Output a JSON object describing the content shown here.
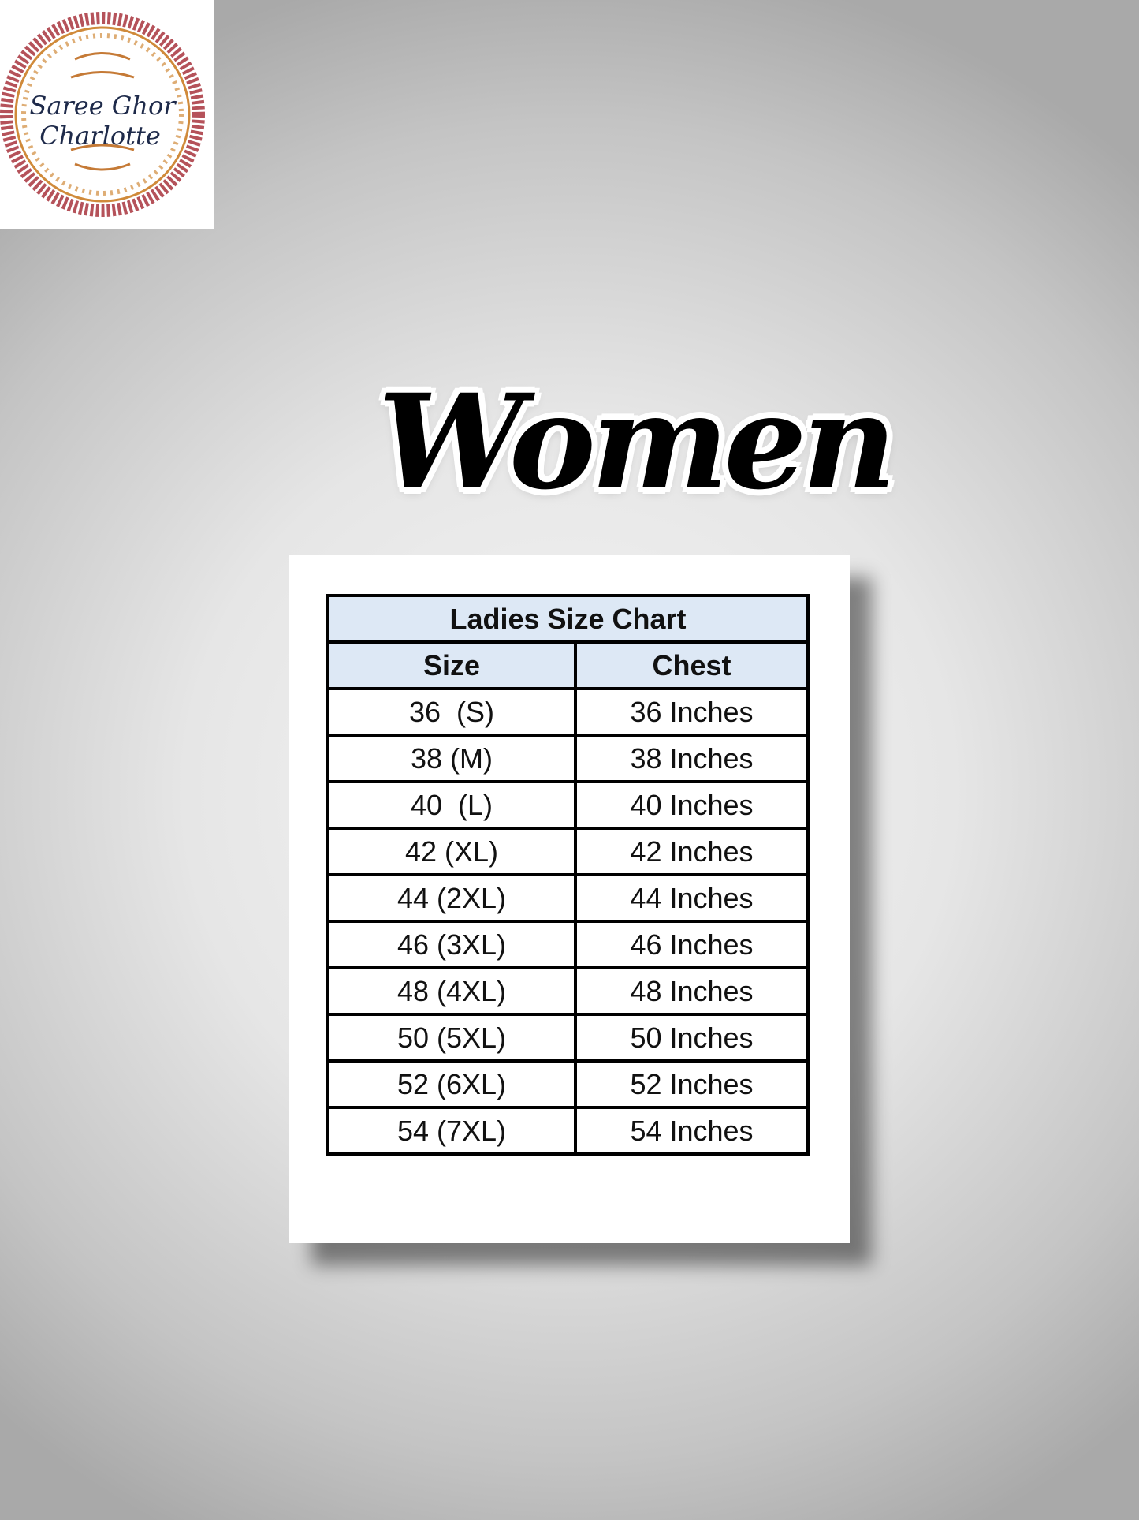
{
  "logo": {
    "text_line1": "Saree Ghor",
    "text_line2": "Charlotte",
    "ring_color": "#b5525a",
    "ornament_color": "#d08a3a",
    "text_color": "#1e2a4a"
  },
  "title": "Women",
  "table": {
    "title": "Ladies Size Chart",
    "headers": [
      "Size",
      "Chest"
    ],
    "header_bg": "#dde8f5",
    "rows": [
      [
        "36  (S)",
        "36 Inches"
      ],
      [
        "38 (M)",
        "38 Inches"
      ],
      [
        "40  (L)",
        "40 Inches"
      ],
      [
        "42 (XL)",
        "42 Inches"
      ],
      [
        "44 (2XL)",
        "44 Inches"
      ],
      [
        "46 (3XL)",
        "46 Inches"
      ],
      [
        "48 (4XL)",
        "48 Inches"
      ],
      [
        "50 (5XL)",
        "50 Inches"
      ],
      [
        "52 (6XL)",
        "52 Inches"
      ],
      [
        "54 (7XL)",
        "54 Inches"
      ]
    ]
  }
}
